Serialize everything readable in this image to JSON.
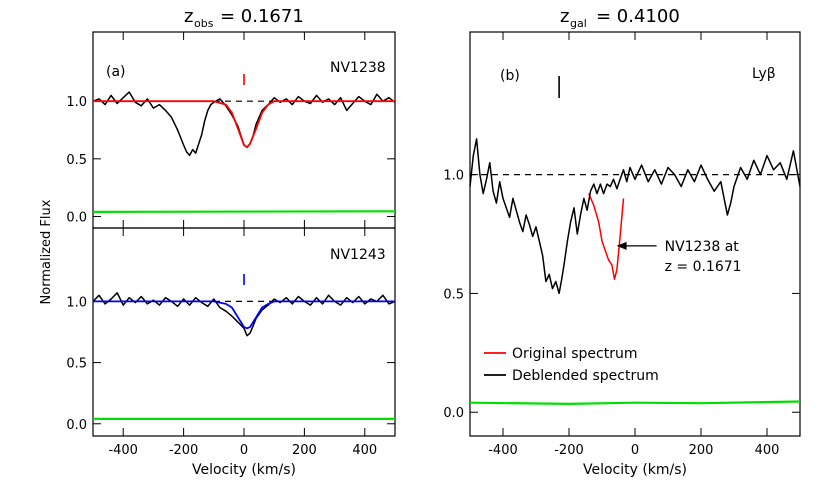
{
  "figure": {
    "shared_ylabel": "Normalized Flux",
    "shared_xlabel": "Velocity (km/s)"
  },
  "chart_data": [
    {
      "type": "line",
      "panel": "(a)",
      "title_main": "z",
      "title_sub": "obs",
      "title_value": "= 0.1671",
      "label": "NV1238",
      "xlim": [
        -500,
        500
      ],
      "ylim": [
        -0.1,
        1.6
      ],
      "xticks": [
        -400,
        -200,
        0,
        200,
        400
      ],
      "yticks": [
        0.0,
        0.5,
        1.0
      ],
      "ytick_labels": [
        "0.0",
        "0.5",
        "1.0"
      ],
      "continuum": 1.0,
      "marker": {
        "x": 0,
        "color": "#ff0000"
      },
      "series": [
        {
          "role": "data",
          "color": "#000000",
          "x": [
            -500,
            -480,
            -460,
            -440,
            -420,
            -400,
            -380,
            -360,
            -340,
            -320,
            -300,
            -280,
            -260,
            -240,
            -220,
            -200,
            -190,
            -180,
            -170,
            -160,
            -150,
            -140,
            -130,
            -120,
            -110,
            -100,
            -80,
            -60,
            -40,
            -20,
            -10,
            0,
            10,
            20,
            30,
            40,
            60,
            80,
            100,
            120,
            140,
            160,
            180,
            200,
            220,
            240,
            260,
            280,
            300,
            320,
            340,
            360,
            380,
            400,
            420,
            440,
            460,
            480,
            500
          ],
          "y": [
            1.0,
            1.02,
            0.97,
            1.05,
            0.98,
            1.03,
            1.08,
            0.99,
            0.96,
            1.02,
            0.94,
            0.97,
            0.92,
            0.86,
            0.75,
            0.62,
            0.56,
            0.53,
            0.58,
            0.55,
            0.63,
            0.71,
            0.83,
            0.92,
            0.97,
            0.99,
            1.02,
            0.96,
            0.88,
            0.78,
            0.7,
            0.62,
            0.6,
            0.63,
            0.7,
            0.8,
            0.92,
            0.97,
            1.03,
            0.99,
            1.02,
            0.97,
            1.04,
            1.0,
            0.98,
            1.05,
            0.99,
            1.02,
            0.97,
            1.03,
            0.92,
            0.98,
            1.04,
            1.0,
            0.97,
            1.06,
            1.0,
            1.03,
            0.99
          ]
        },
        {
          "role": "fit",
          "color": "#ff0000",
          "x": [
            -500,
            -100,
            -60,
            -40,
            -20,
            0,
            10,
            20,
            40,
            60,
            80,
            100,
            500
          ],
          "y": [
            1.0,
            1.0,
            0.97,
            0.9,
            0.76,
            0.62,
            0.6,
            0.63,
            0.76,
            0.9,
            0.97,
            1.0,
            1.0
          ]
        },
        {
          "role": "error",
          "color": "#00e000",
          "x": [
            -500,
            500
          ],
          "y": [
            0.04,
            0.045
          ]
        }
      ]
    },
    {
      "type": "line",
      "label": "NV1243",
      "xlim": [
        -500,
        500
      ],
      "ylim": [
        -0.1,
        1.6
      ],
      "xticks": [
        -400,
        -200,
        0,
        200,
        400
      ],
      "xtick_labels": [
        "-400",
        "-200",
        "0",
        "200",
        "400"
      ],
      "yticks": [
        0.0,
        0.5,
        1.0
      ],
      "ytick_labels": [
        "0.0",
        "0.5",
        "1.0"
      ],
      "continuum": 1.0,
      "marker": {
        "x": 0,
        "color": "#0000ff"
      },
      "series": [
        {
          "role": "data",
          "color": "#000000",
          "x": [
            -500,
            -480,
            -460,
            -440,
            -420,
            -400,
            -380,
            -360,
            -340,
            -320,
            -300,
            -280,
            -260,
            -240,
            -220,
            -200,
            -180,
            -160,
            -140,
            -120,
            -100,
            -80,
            -60,
            -40,
            -20,
            0,
            10,
            20,
            30,
            40,
            60,
            80,
            100,
            120,
            140,
            160,
            180,
            200,
            220,
            240,
            260,
            280,
            300,
            320,
            340,
            360,
            380,
            400,
            420,
            440,
            460,
            480,
            500
          ],
          "y": [
            1.0,
            1.05,
            0.98,
            1.02,
            1.07,
            0.97,
            1.03,
            0.99,
            1.04,
            0.98,
            1.01,
            0.97,
            1.03,
            1.0,
            0.96,
            1.02,
            0.97,
            1.03,
            0.99,
            0.96,
            1.02,
            0.95,
            0.92,
            0.88,
            0.83,
            0.78,
            0.72,
            0.74,
            0.8,
            0.86,
            0.93,
            0.97,
            1.02,
            0.99,
            1.03,
            0.98,
            1.04,
            1.0,
            0.97,
            1.03,
            0.98,
            1.05,
            1.0,
            0.97,
            1.03,
            0.99,
            1.04,
            0.98,
            1.02,
            1.0,
            1.05,
            0.98,
            1.0
          ]
        },
        {
          "role": "fit",
          "color": "#0000ff",
          "x": [
            -500,
            -100,
            -60,
            -40,
            -20,
            0,
            10,
            20,
            40,
            60,
            80,
            100,
            500
          ],
          "y": [
            1.0,
            1.0,
            0.98,
            0.95,
            0.87,
            0.79,
            0.78,
            0.79,
            0.87,
            0.95,
            0.98,
            1.0,
            1.0
          ]
        },
        {
          "role": "error",
          "color": "#00e000",
          "x": [
            -500,
            500
          ],
          "y": [
            0.04,
            0.04
          ]
        }
      ]
    },
    {
      "type": "line",
      "panel": "(b)",
      "title_main": "z",
      "title_sub": "gal",
      "title_value": "= 0.4100",
      "label": "Lyβ",
      "xlim": [
        -500,
        500
      ],
      "ylim": [
        -0.1,
        1.6
      ],
      "xticks": [
        -400,
        -200,
        0,
        200,
        400
      ],
      "xtick_labels": [
        "-400",
        "-200",
        "0",
        "200",
        "400"
      ],
      "yticks": [
        0.0,
        0.5,
        1.0
      ],
      "ytick_labels": [
        "0.0",
        "0.5",
        "1.0"
      ],
      "continuum": 1.0,
      "marker": {
        "x": -230,
        "color": "#000000"
      },
      "annotation": {
        "line1": "NV1238 at",
        "line2": "z = 0.1671",
        "x": -80,
        "y": 0.7
      },
      "legend": [
        {
          "name": "Original spectrum",
          "color": "#ff0000"
        },
        {
          "name": "Deblended spectrum",
          "color": "#000000"
        }
      ],
      "series": [
        {
          "role": "original",
          "color": "#ff0000",
          "x": [
            -140,
            -125,
            -110,
            -100,
            -90,
            -80,
            -70,
            -62,
            -55,
            -45,
            -35
          ],
          "y": [
            0.92,
            0.87,
            0.8,
            0.72,
            0.68,
            0.64,
            0.62,
            0.56,
            0.6,
            0.74,
            0.9
          ]
        },
        {
          "role": "deblended",
          "color": "#000000",
          "x": [
            -500,
            -490,
            -480,
            -470,
            -460,
            -450,
            -440,
            -430,
            -420,
            -410,
            -400,
            -390,
            -380,
            -370,
            -360,
            -350,
            -340,
            -330,
            -320,
            -310,
            -300,
            -290,
            -280,
            -270,
            -260,
            -250,
            -240,
            -230,
            -222,
            -215,
            -205,
            -195,
            -185,
            -175,
            -165,
            -155,
            -145,
            -135,
            -125,
            -115,
            -105,
            -95,
            -85,
            -75,
            -65,
            -55,
            -45,
            -35,
            -25,
            -15,
            0,
            20,
            40,
            60,
            80,
            100,
            120,
            140,
            160,
            180,
            200,
            220,
            240,
            260,
            280,
            290,
            300,
            320,
            340,
            360,
            380,
            400,
            420,
            440,
            460,
            480,
            500
          ],
          "y": [
            0.95,
            1.08,
            1.15,
            1.0,
            0.92,
            0.98,
            1.05,
            0.93,
            0.88,
            0.97,
            0.9,
            0.86,
            0.82,
            0.9,
            0.85,
            0.8,
            0.76,
            0.83,
            0.79,
            0.74,
            0.78,
            0.72,
            0.66,
            0.55,
            0.58,
            0.52,
            0.55,
            0.5,
            0.56,
            0.62,
            0.72,
            0.8,
            0.86,
            0.75,
            0.83,
            0.9,
            0.85,
            0.93,
            0.96,
            0.92,
            0.96,
            0.92,
            0.96,
            0.95,
            0.98,
            0.94,
            0.98,
            1.02,
            0.97,
            1.03,
            0.98,
            1.04,
            0.97,
            1.02,
            0.96,
            1.03,
            1.0,
            0.95,
            1.02,
            0.97,
            1.04,
            0.98,
            0.93,
            0.97,
            0.83,
            0.88,
            0.95,
            1.03,
            0.98,
            1.06,
            1.0,
            1.08,
            1.02,
            1.05,
            0.98,
            1.1,
            0.95
          ]
        },
        {
          "role": "error",
          "color": "#00e000",
          "x": [
            -500,
            -200,
            0,
            200,
            500
          ],
          "y": [
            0.04,
            0.035,
            0.04,
            0.038,
            0.045
          ]
        }
      ]
    }
  ]
}
